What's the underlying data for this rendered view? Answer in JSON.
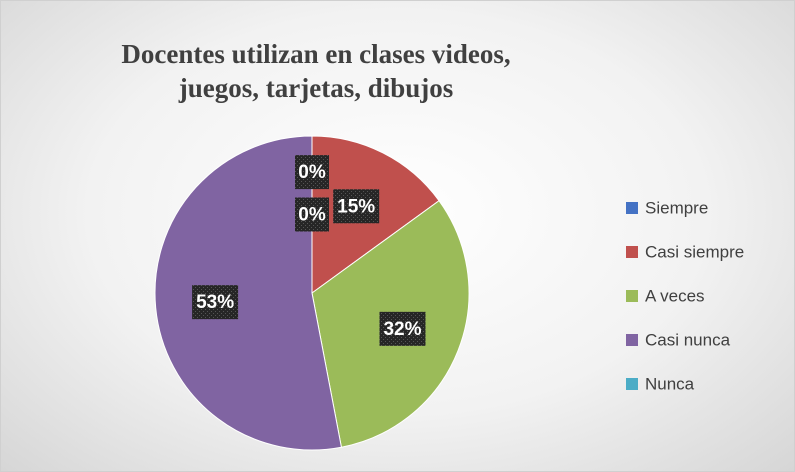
{
  "chart_data": {
    "type": "pie",
    "title": "Docentes utilizan en clases videos, juegos, tarjetas, dibujos",
    "categories": [
      "Siempre",
      "Casi  siempre",
      "A veces",
      "Casi  nunca",
      "Nunca"
    ],
    "values": [
      0,
      15,
      32,
      53,
      0
    ],
    "value_labels": [
      "0%",
      "15%",
      "32%",
      "53%",
      "0%"
    ],
    "colors": [
      "#4472c4",
      "#c0504d",
      "#9bbb59",
      "#8064a2",
      "#4bacc6"
    ],
    "legend": "right"
  }
}
